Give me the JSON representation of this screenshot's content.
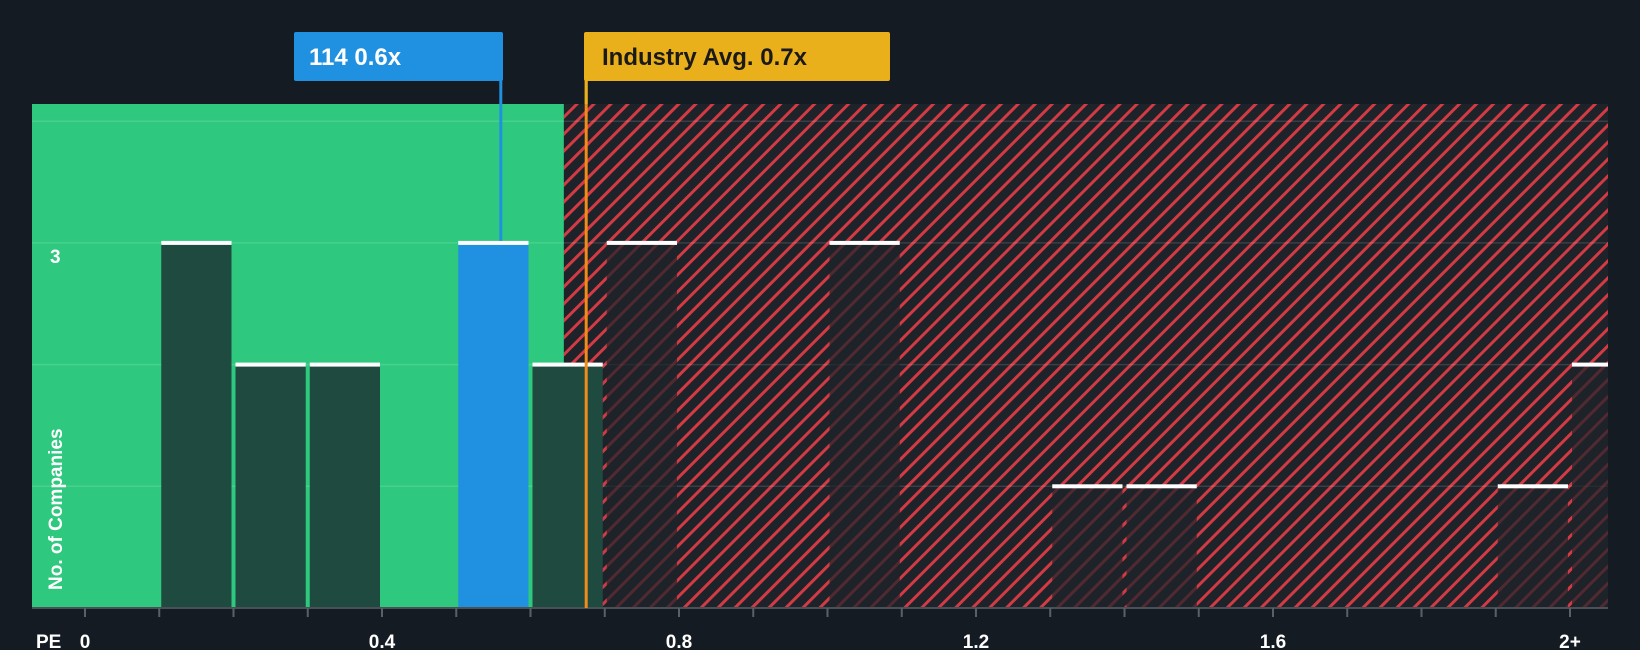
{
  "chart_data": {
    "type": "bar",
    "xlabel": "PE",
    "ylabel": "No. of Companies",
    "x_ticks": [
      {
        "value": 0,
        "label": "0"
      },
      {
        "value": 0.4,
        "label": "0.4"
      },
      {
        "value": 0.8,
        "label": "0.8"
      },
      {
        "value": 1.2,
        "label": "1.2"
      },
      {
        "value": 1.6,
        "label": "1.6"
      },
      {
        "value": 2.0,
        "label": "2+"
      }
    ],
    "xlim": [
      0,
      2.05
    ],
    "y_ticks": [
      {
        "value": 3,
        "label": "3"
      }
    ],
    "ylim": [
      0,
      3
    ],
    "bin_width": 0.1,
    "bins": [
      {
        "start": 0.1,
        "count": 3
      },
      {
        "start": 0.2,
        "count": 2
      },
      {
        "start": 0.3,
        "count": 2
      },
      {
        "start": 0.5,
        "count": 3,
        "highlight": true
      },
      {
        "start": 0.6,
        "count": 2
      },
      {
        "start": 0.7,
        "count": 3
      },
      {
        "start": 1.0,
        "count": 3
      },
      {
        "start": 1.3,
        "count": 1
      },
      {
        "start": 1.4,
        "count": 1
      },
      {
        "start": 1.9,
        "count": 1
      },
      {
        "start": 2.0,
        "count": 2
      }
    ],
    "company_marker": {
      "label": "114 0.6x",
      "value": 0.56
    },
    "industry_avg": {
      "label": "Industry Avg. 0.7x",
      "value": 0.675
    },
    "shaded_regions": [
      {
        "from": 0,
        "to": 0.645,
        "meaning": "below industry"
      },
      {
        "from": 0.645,
        "to": 2.05,
        "meaning": "above industry"
      }
    ],
    "colors": {
      "background": "#151b23",
      "good_region": "#2ec97e",
      "bad_region": "#8b2a31",
      "bad_hatch": "#e0434c",
      "bar_dark": "#1f4a40",
      "bar_highlight": "#2091e0",
      "bar_top": "#ffffff",
      "company_callout": "#2091e0",
      "industry_callout": "#eab01c",
      "industry_line": "#f08c1a"
    }
  }
}
